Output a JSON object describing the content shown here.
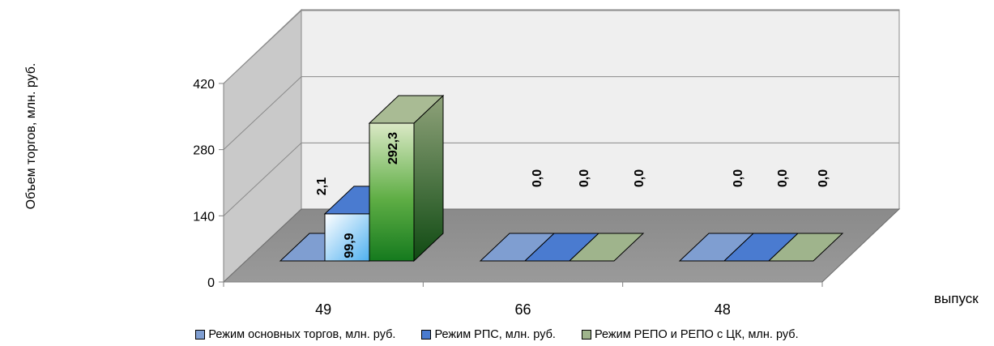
{
  "chart_data": {
    "type": "bar",
    "variant": "3d-clustered-column",
    "categories": [
      "49",
      "66",
      "48"
    ],
    "series": [
      {
        "name": "Режим основных торгов, млн. руб.",
        "values": [
          2.1,
          0.0,
          0.0
        ],
        "labels": [
          "2,1",
          "0,0",
          "0,0"
        ],
        "color": "#7f9ed1"
      },
      {
        "name": "Режим РПС, млн. руб.",
        "values": [
          99.9,
          0.0,
          0.0
        ],
        "labels": [
          "99,9",
          "0,0",
          "0,0"
        ],
        "color": "#4a7bd0"
      },
      {
        "name": "Режим РЕПО и РЕПО с ЦК, млн. руб.",
        "values": [
          292.3,
          0.0,
          0.0
        ],
        "labels": [
          "292,3",
          "0,0",
          "0,0"
        ],
        "color": "#9fb48c"
      }
    ],
    "ylabel": "Объем торгов, млн. руб.",
    "xlabel": "выпуск",
    "ylim": [
      0,
      420
    ],
    "yticks": [
      0,
      140,
      280,
      420
    ],
    "yticklabels": [
      "0",
      "140",
      "280",
      "420"
    ],
    "grid": true,
    "legend": "bottom"
  }
}
